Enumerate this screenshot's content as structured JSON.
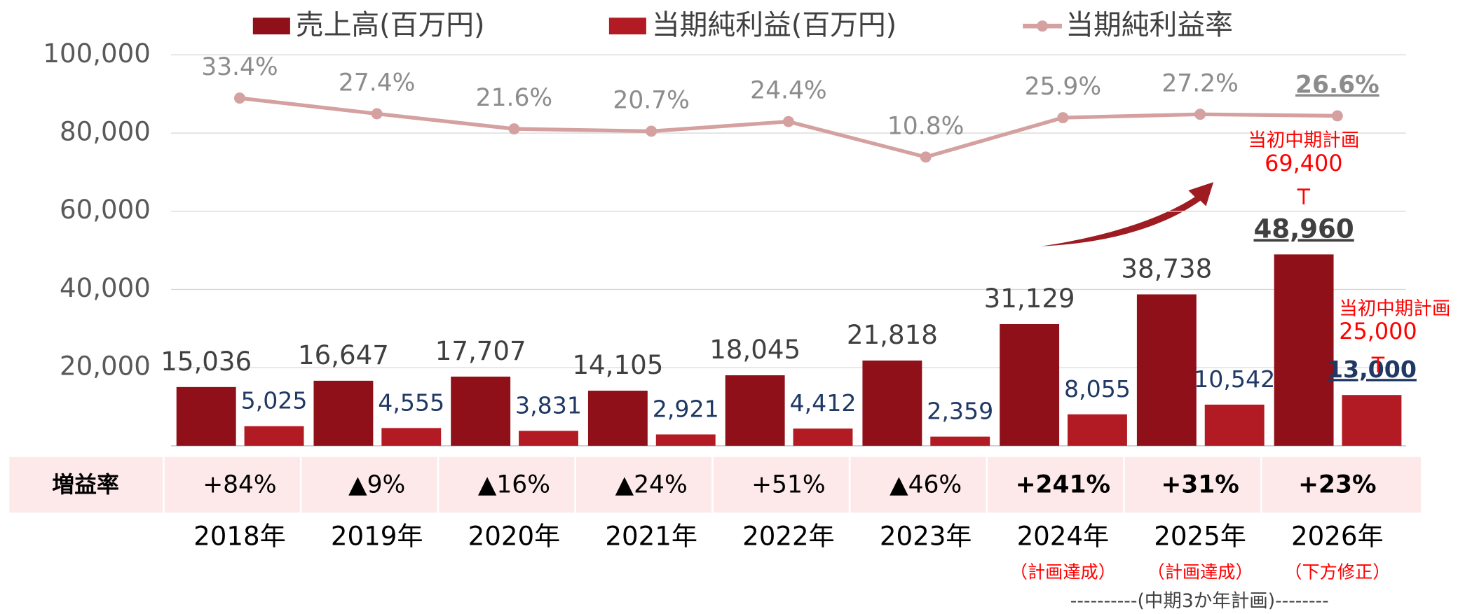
{
  "chart_data": {
    "type": "bar_line",
    "categories": [
      "2018年",
      "2019年",
      "2020年",
      "2021年",
      "2022年",
      "2023年",
      "2024年",
      "2025年",
      "2026年"
    ],
    "series": [
      {
        "name": "売上高(百万円)",
        "type": "bar",
        "color": "#8f1019",
        "values": [
          15036,
          16647,
          17707,
          14105,
          18045,
          21818,
          31129,
          38738,
          48960
        ],
        "value_labels": [
          "15,036",
          "16,647",
          "17,707",
          "14,105",
          "18,045",
          "21,818",
          "31,129",
          "38,738",
          "48,960"
        ]
      },
      {
        "name": "当期純利益(百万円)",
        "type": "bar",
        "color": "#b31b24",
        "values": [
          5025,
          4555,
          3831,
          2921,
          4412,
          2359,
          8055,
          10542,
          13000
        ],
        "value_labels": [
          "5,025",
          "4,555",
          "3,831",
          "2,921",
          "4,412",
          "2,359",
          "8,055",
          "10,542",
          "13,000"
        ]
      },
      {
        "name": "当期純利益率",
        "type": "line",
        "axis": "y2",
        "color": "#d4a0a0",
        "values": [
          33.4,
          27.4,
          21.6,
          20.7,
          24.4,
          10.8,
          25.9,
          27.2,
          26.6
        ],
        "value_labels": [
          "33.4%",
          "27.4%",
          "21.6%",
          "20.7%",
          "24.4%",
          "10.8%",
          "25.9%",
          "27.2%",
          "26.6%"
        ]
      }
    ],
    "ylim": [
      0,
      100000
    ],
    "yticks": [
      {
        "value": 20000,
        "label": "20,000"
      },
      {
        "value": 40000,
        "label": "40,000"
      },
      {
        "value": 60000,
        "label": "60,000"
      },
      {
        "value": 80000,
        "label": "80,000"
      },
      {
        "value": 100000,
        "label": "100,000"
      }
    ],
    "y2lim": [
      -100,
      50
    ],
    "grid": true,
    "legend": "top",
    "growth_rate": {
      "label": "増益率",
      "values": [
        "+84%",
        "▲9%",
        "▲16%",
        "▲24%",
        "+51%",
        "▲46%",
        "+241%",
        "+31%",
        "+23%"
      ]
    },
    "year_notes": [
      null,
      null,
      null,
      null,
      null,
      null,
      "（計画達成）",
      "（計画達成）",
      "（下方修正）"
    ],
    "plan_span": "----------(中期3か年計画)--------",
    "annotations": [
      {
        "title": "当初中期計画",
        "value": "69,400"
      },
      {
        "title": "当初中期計画",
        "value": "25,000"
      }
    ]
  }
}
